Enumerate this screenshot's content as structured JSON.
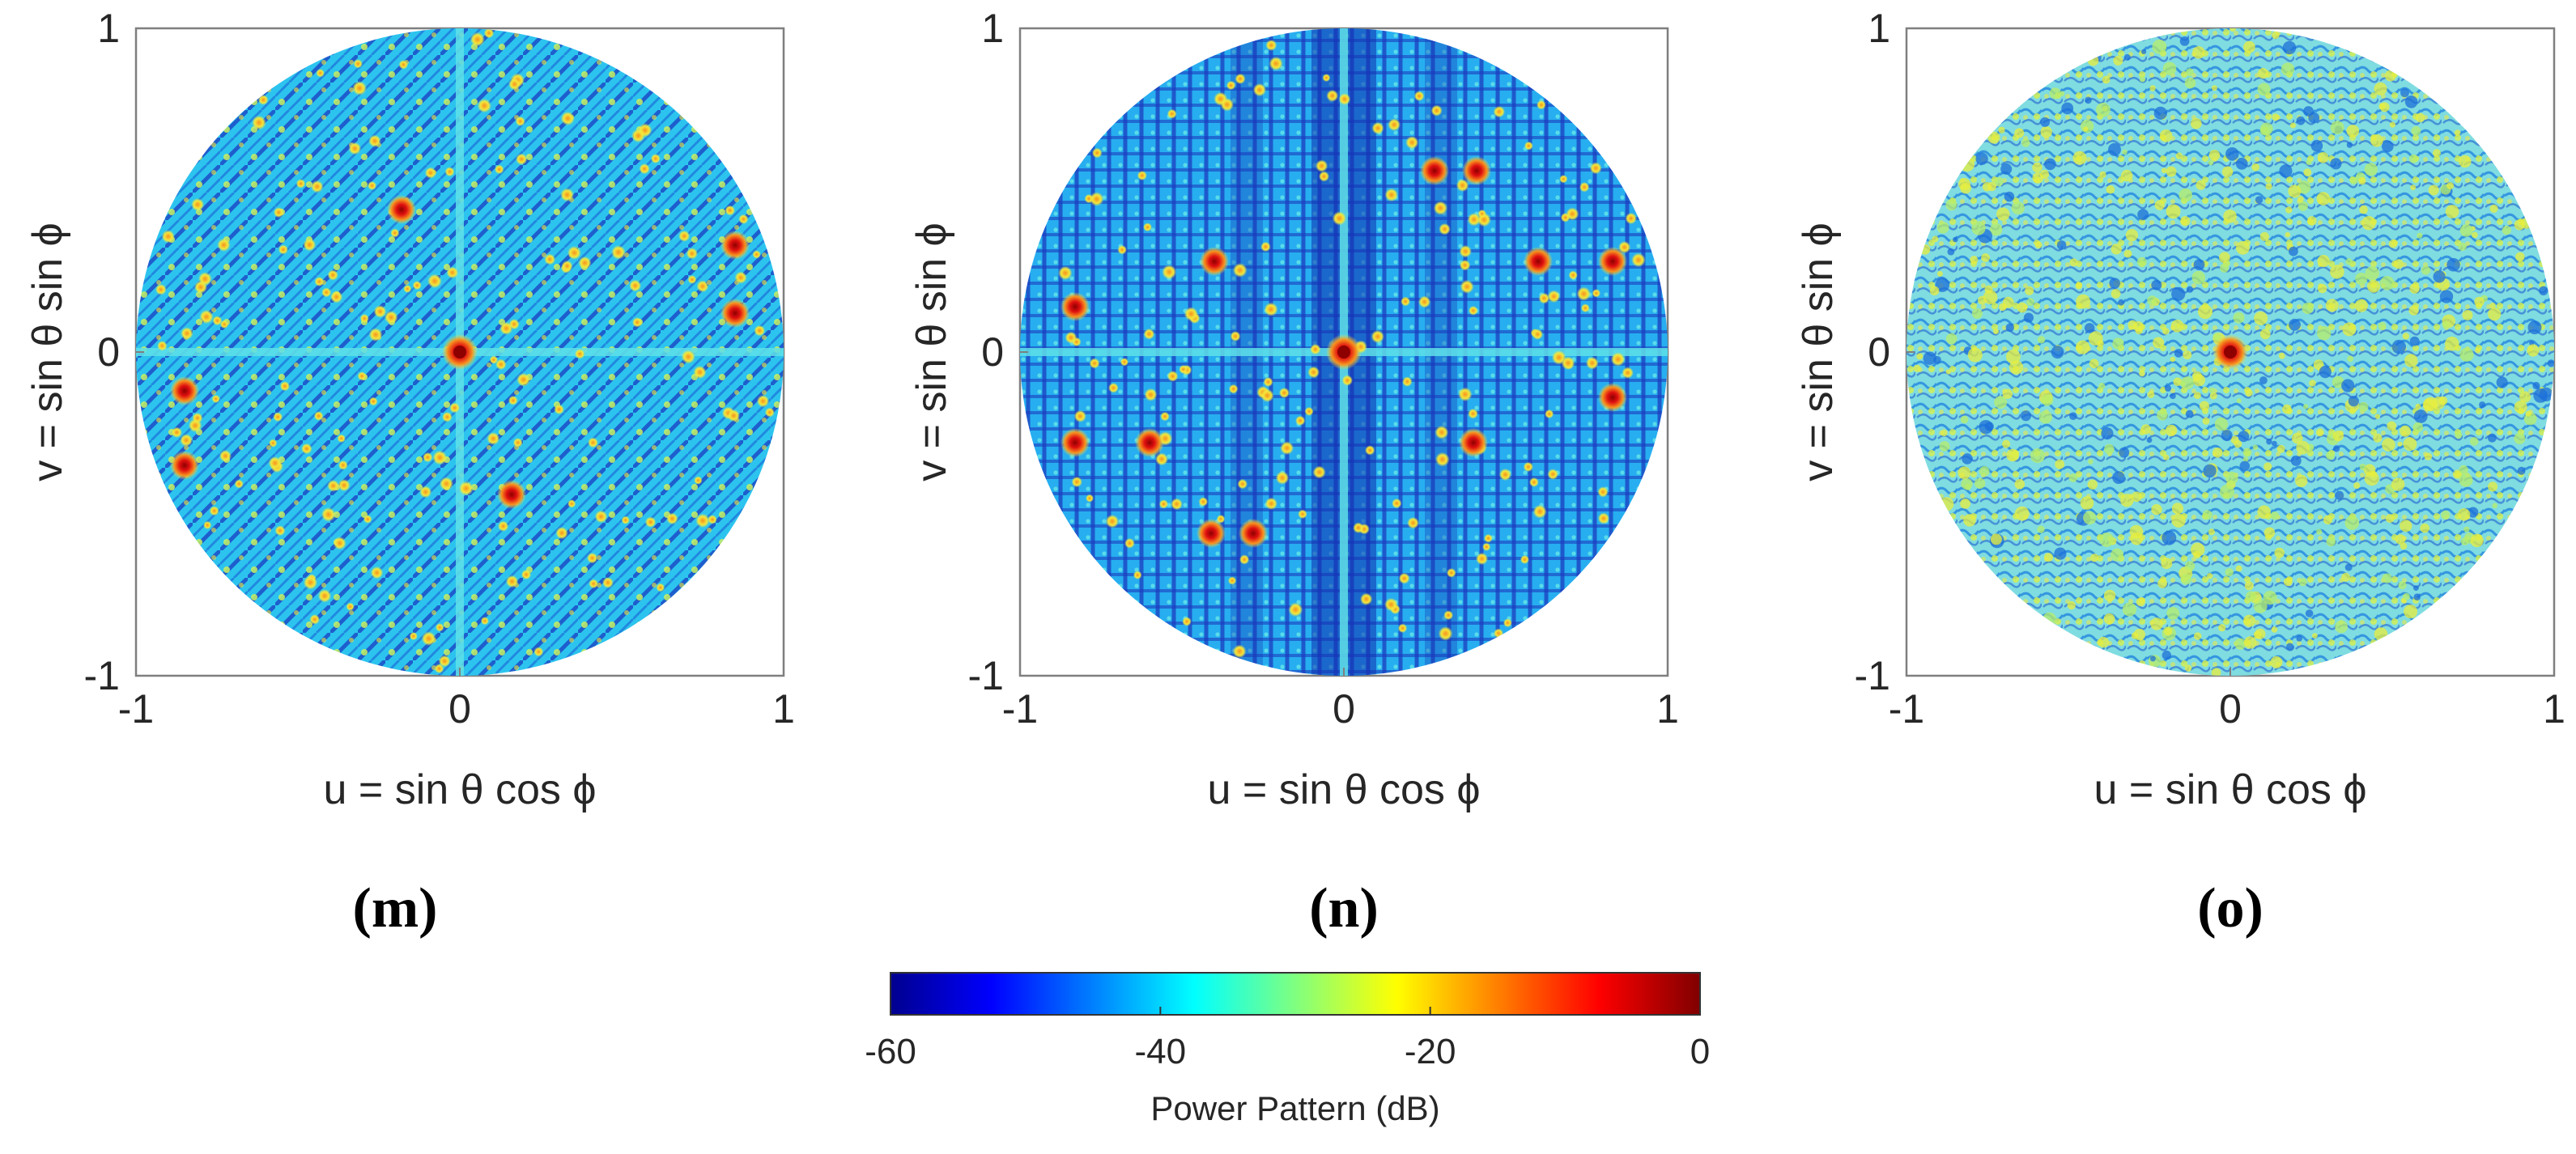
{
  "chart_data": [
    {
      "type": "heatmap",
      "panel_label": "(m)",
      "xlabel": "u = sin θ cos ϕ",
      "ylabel": "v = sin θ sin ϕ",
      "xlim": [
        -1,
        1
      ],
      "ylim": [
        -1,
        1
      ],
      "x_ticks": [
        "-1",
        "0",
        "1"
      ],
      "y_ticks": [
        "-1",
        "0",
        "1"
      ],
      "pattern": "sparse",
      "main_beam": [
        0,
        0
      ],
      "grating_lobes": [
        [
          -0.18,
          0.44
        ],
        [
          0.16,
          -0.44
        ],
        [
          0.85,
          0.33
        ],
        [
          0.85,
          0.12
        ],
        [
          -0.85,
          -0.12
        ],
        [
          -0.85,
          -0.35
        ]
      ]
    },
    {
      "type": "heatmap",
      "panel_label": "(n)",
      "xlabel": "u = sin θ cos ϕ",
      "ylabel": "v = sin θ sin ϕ",
      "xlim": [
        -1,
        1
      ],
      "ylim": [
        -1,
        1
      ],
      "x_ticks": [
        "-1",
        "0",
        "1"
      ],
      "y_ticks": [
        "-1",
        "0",
        "1"
      ],
      "pattern": "periodic",
      "main_beam": [
        0,
        0
      ],
      "grating_lobes": [
        [
          0.28,
          0.56
        ],
        [
          0.41,
          0.56
        ],
        [
          -0.28,
          -0.56
        ],
        [
          -0.41,
          -0.56
        ],
        [
          0.6,
          0.28
        ],
        [
          0.83,
          0.28
        ],
        [
          -0.6,
          -0.28
        ],
        [
          -0.83,
          -0.28
        ],
        [
          -0.4,
          0.28
        ],
        [
          0.4,
          -0.28
        ],
        [
          -0.83,
          0.14
        ],
        [
          0.83,
          -0.14
        ]
      ]
    },
    {
      "type": "heatmap",
      "panel_label": "(o)",
      "xlabel": "u = sin θ cos ϕ",
      "ylabel": "v = sin θ sin ϕ",
      "xlim": [
        -1,
        1
      ],
      "ylim": [
        -1,
        1
      ],
      "x_ticks": [
        "-1",
        "0",
        "1"
      ],
      "y_ticks": [
        "-1",
        "0",
        "1"
      ],
      "pattern": "random",
      "main_beam": [
        0,
        0
      ],
      "grating_lobes": []
    }
  ],
  "colorbar": {
    "label": "Power Pattern (dB)",
    "ticks": [
      "-60",
      "-40",
      "-20",
      "0"
    ],
    "range": [
      -60,
      0
    ],
    "colormap": [
      "#00008f",
      "#0000ff",
      "#00ffff",
      "#ffff00",
      "#ff0000",
      "#800000"
    ]
  },
  "colors": {
    "dark_blue": "#1532b8",
    "mid_blue": "#1c7fe0",
    "cyan": "#2ac6ee",
    "light_cyan": "#5fe0e8",
    "yellow_green": "#c8f060",
    "yellow": "#f2e83c",
    "orange": "#f7921e",
    "red": "#d91a1a",
    "dark_red": "#8e0000"
  }
}
